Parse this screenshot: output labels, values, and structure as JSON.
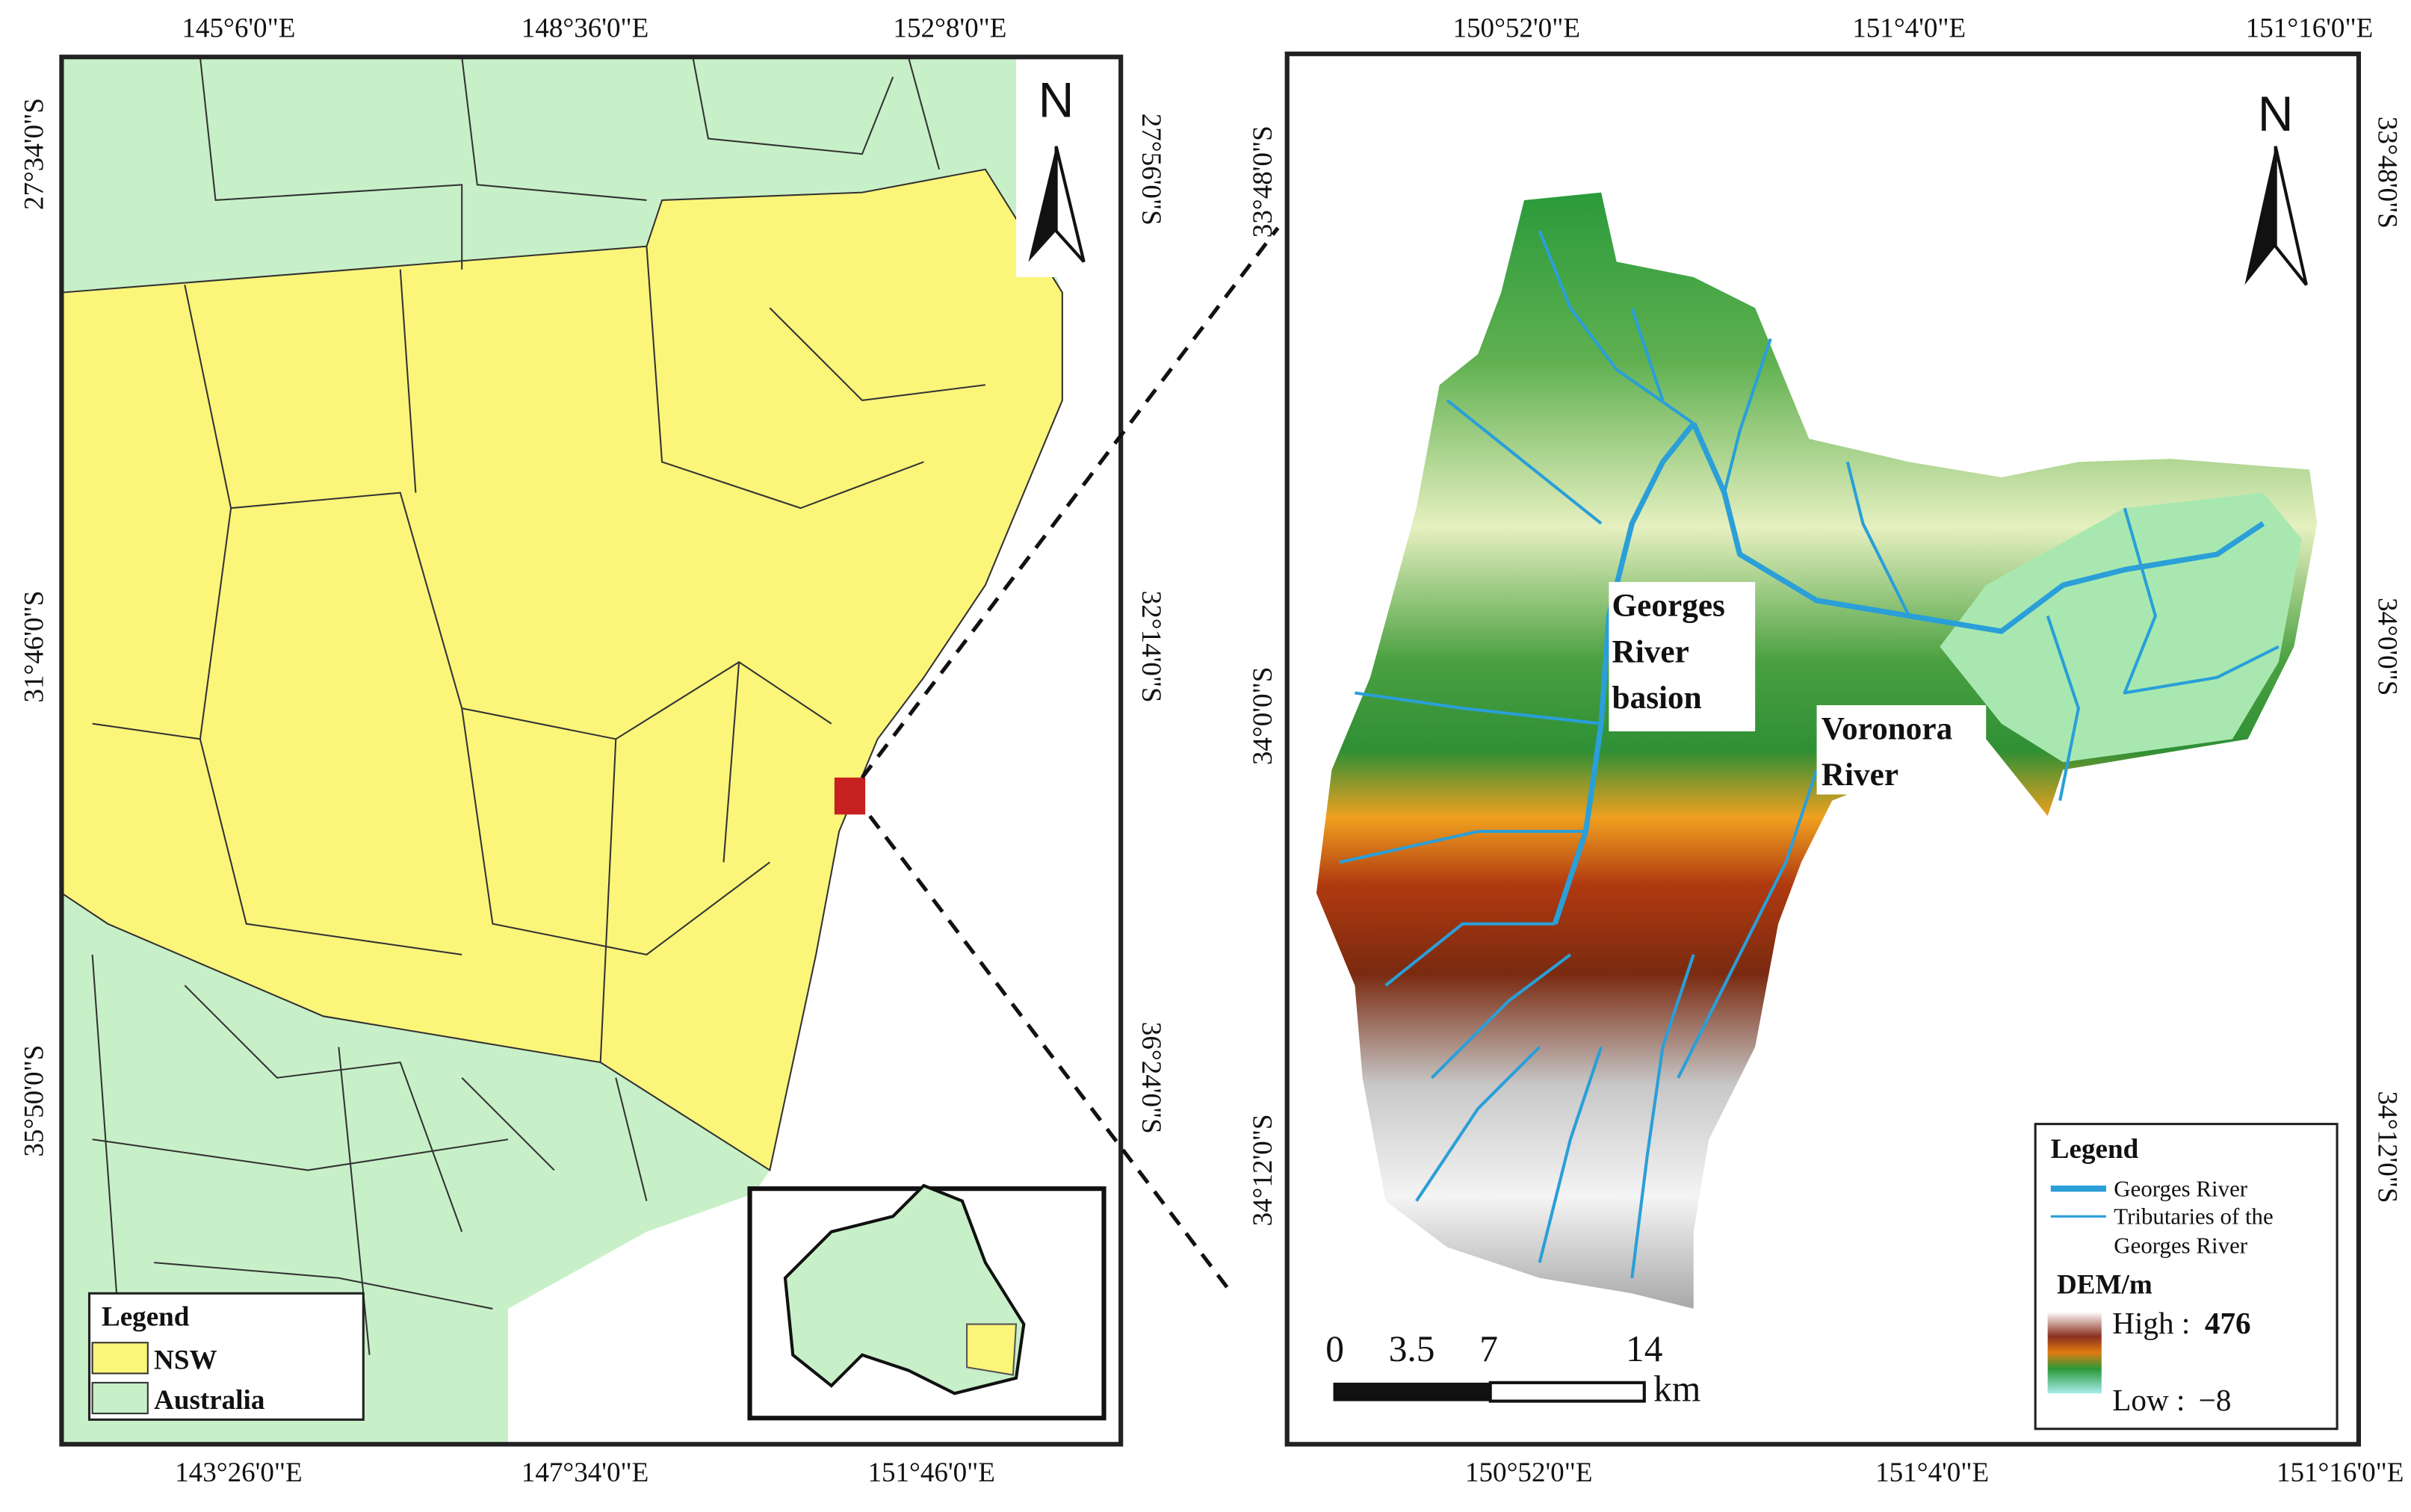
{
  "left_map": {
    "top_labels": [
      "145°6'0\"E",
      "148°36'0\"E",
      "152°8'0\"E"
    ],
    "bottom_labels": [
      "143°26'0\"E",
      "147°34'0\"E",
      "151°46'0\"E"
    ],
    "left_labels": [
      "27°34'0\"S",
      "31°46'0\"S",
      "35°50'0\"S"
    ],
    "right_labels": [
      "27°56'0\"S",
      "32°14'0\"S",
      "36°24'0\"S"
    ],
    "north": "N",
    "legend": {
      "title": "Legend",
      "items": [
        "NSW",
        "Australia"
      ]
    }
  },
  "right_map": {
    "top_labels": [
      "150°52'0\"E",
      "151°4'0\"E",
      "151°16'0\"E"
    ],
    "bottom_labels": [
      "150°52'0\"E",
      "151°4'0\"E",
      "151°16'0\"E"
    ],
    "left_labels": [
      "33°48'0\"S",
      "34°0'0\"S",
      "34°12'0\"S"
    ],
    "right_labels": [
      "33°48'0\"S",
      "34°0'0\"S",
      "34°12'0\"S"
    ],
    "north": "N",
    "basin_label": [
      "Georges",
      "River",
      "basion"
    ],
    "river_label": [
      "Voronora",
      "River"
    ],
    "scale_bar": {
      "ticks": [
        0,
        3.5,
        7,
        14
      ],
      "unit": "km"
    },
    "legend": {
      "title": "Legend",
      "main_river": "Georges River",
      "tributaries": [
        "Tributaries of the",
        "Georges River"
      ],
      "dem_title": "DEM/m",
      "high_label": "High :",
      "high": 476,
      "low_label": "Low :",
      "low": "−8"
    }
  }
}
